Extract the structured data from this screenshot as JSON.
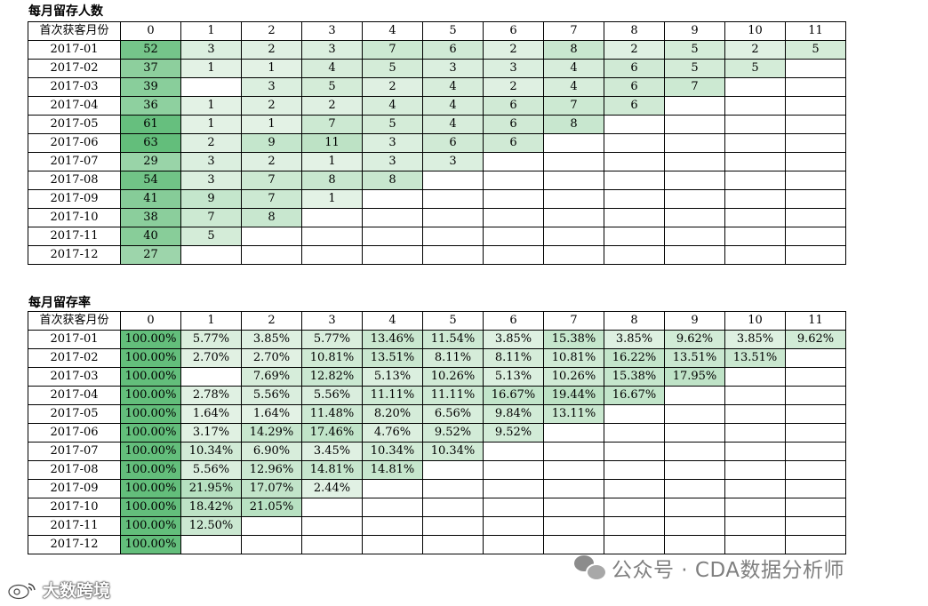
{
  "retention_counts": {
    "title": "每月留存人数",
    "corner_label": "首次获客月份",
    "columns": [
      "0",
      "1",
      "2",
      "3",
      "4",
      "5",
      "6",
      "7",
      "8",
      "9",
      "10",
      "11"
    ],
    "rows": [
      {
        "month": "2017-01",
        "values": [
          "52",
          "3",
          "2",
          "3",
          "7",
          "6",
          "2",
          "8",
          "2",
          "5",
          "2",
          "5"
        ]
      },
      {
        "month": "2017-02",
        "values": [
          "37",
          "1",
          "1",
          "4",
          "5",
          "3",
          "3",
          "4",
          "6",
          "5",
          "5",
          ""
        ]
      },
      {
        "month": "2017-03",
        "values": [
          "39",
          "",
          "3",
          "5",
          "2",
          "4",
          "2",
          "4",
          "6",
          "7",
          "",
          ""
        ]
      },
      {
        "month": "2017-04",
        "values": [
          "36",
          "1",
          "2",
          "2",
          "4",
          "4",
          "6",
          "7",
          "6",
          "",
          "",
          ""
        ]
      },
      {
        "month": "2017-05",
        "values": [
          "61",
          "1",
          "1",
          "7",
          "5",
          "4",
          "6",
          "8",
          "",
          "",
          "",
          ""
        ]
      },
      {
        "month": "2017-06",
        "values": [
          "63",
          "2",
          "9",
          "11",
          "3",
          "6",
          "6",
          "",
          "",
          "",
          "",
          ""
        ]
      },
      {
        "month": "2017-07",
        "values": [
          "29",
          "3",
          "2",
          "1",
          "3",
          "3",
          "",
          "",
          "",
          "",
          "",
          ""
        ]
      },
      {
        "month": "2017-08",
        "values": [
          "54",
          "3",
          "7",
          "8",
          "8",
          "",
          "",
          "",
          "",
          "",
          "",
          ""
        ]
      },
      {
        "month": "2017-09",
        "values": [
          "41",
          "9",
          "7",
          "1",
          "",
          "",
          "",
          "",
          "",
          "",
          "",
          ""
        ]
      },
      {
        "month": "2017-10",
        "values": [
          "38",
          "7",
          "8",
          "",
          "",
          "",
          "",
          "",
          "",
          "",
          "",
          ""
        ]
      },
      {
        "month": "2017-11",
        "values": [
          "40",
          "5",
          "",
          "",
          "",
          "",
          "",
          "",
          "",
          "",
          "",
          ""
        ]
      },
      {
        "month": "2017-12",
        "values": [
          "27",
          "",
          "",
          "",
          "",
          "",
          "",
          "",
          "",
          "",
          "",
          ""
        ]
      }
    ]
  },
  "retention_rates": {
    "title": "每月留存率",
    "corner_label": "首次获客月份",
    "columns": [
      "0",
      "1",
      "2",
      "3",
      "4",
      "5",
      "6",
      "7",
      "8",
      "9",
      "10",
      "11"
    ],
    "rows": [
      {
        "month": "2017-01",
        "values": [
          "100.00%",
          "5.77%",
          "3.85%",
          "5.77%",
          "13.46%",
          "11.54%",
          "3.85%",
          "15.38%",
          "3.85%",
          "9.62%",
          "3.85%",
          "9.62%"
        ]
      },
      {
        "month": "2017-02",
        "values": [
          "100.00%",
          "2.70%",
          "2.70%",
          "10.81%",
          "13.51%",
          "8.11%",
          "8.11%",
          "10.81%",
          "16.22%",
          "13.51%",
          "13.51%",
          ""
        ]
      },
      {
        "month": "2017-03",
        "values": [
          "100.00%",
          "",
          "7.69%",
          "12.82%",
          "5.13%",
          "10.26%",
          "5.13%",
          "10.26%",
          "15.38%",
          "17.95%",
          "",
          ""
        ]
      },
      {
        "month": "2017-04",
        "values": [
          "100.00%",
          "2.78%",
          "5.56%",
          "5.56%",
          "11.11%",
          "11.11%",
          "16.67%",
          "19.44%",
          "16.67%",
          "",
          "",
          ""
        ]
      },
      {
        "month": "2017-05",
        "values": [
          "100.00%",
          "1.64%",
          "1.64%",
          "11.48%",
          "8.20%",
          "6.56%",
          "9.84%",
          "13.11%",
          "",
          "",
          "",
          ""
        ]
      },
      {
        "month": "2017-06",
        "values": [
          "100.00%",
          "3.17%",
          "14.29%",
          "17.46%",
          "4.76%",
          "9.52%",
          "9.52%",
          "",
          "",
          "",
          "",
          ""
        ]
      },
      {
        "month": "2017-07",
        "values": [
          "100.00%",
          "10.34%",
          "6.90%",
          "3.45%",
          "10.34%",
          "10.34%",
          "",
          "",
          "",
          "",
          "",
          ""
        ]
      },
      {
        "month": "2017-08",
        "values": [
          "100.00%",
          "5.56%",
          "12.96%",
          "14.81%",
          "14.81%",
          "",
          "",
          "",
          "",
          "",
          "",
          ""
        ]
      },
      {
        "month": "2017-09",
        "values": [
          "100.00%",
          "21.95%",
          "17.07%",
          "2.44%",
          "",
          "",
          "",
          "",
          "",
          "",
          "",
          ""
        ]
      },
      {
        "month": "2017-10",
        "values": [
          "100.00%",
          "18.42%",
          "21.05%",
          "",
          "",
          "",
          "",
          "",
          "",
          "",
          "",
          ""
        ]
      },
      {
        "month": "2017-11",
        "values": [
          "100.00%",
          "12.50%",
          "",
          "",
          "",
          "",
          "",
          "",
          "",
          "",
          "",
          ""
        ]
      },
      {
        "month": "2017-12",
        "values": [
          "100.00%",
          "",
          "",
          "",
          "",
          "",
          "",
          "",
          "",
          "",
          "",
          ""
        ]
      }
    ]
  },
  "colors": {
    "scale_max": "#63be7b",
    "scale_min": "#e3f2e5",
    "border": "#000000"
  },
  "watermarks": {
    "right_text": "公众号 · CDA数据分析师",
    "right_icon": "wechat-icon",
    "left_text": "大数跨境",
    "left_icon": "weibo-icon"
  }
}
